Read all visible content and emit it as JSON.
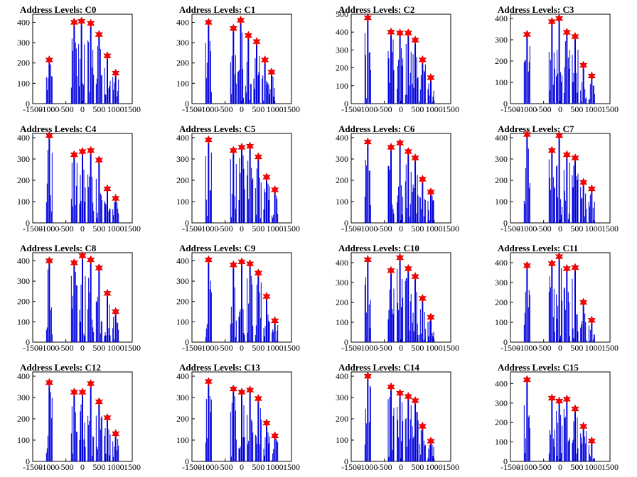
{
  "style": {
    "bar_color": "#0000dd",
    "marker_color": "#ff0000",
    "axis_color": "#000000"
  },
  "chart_data": [
    {
      "type": "bar",
      "title": "Address Levels: C0",
      "xlim": [
        -1500,
        1500
      ],
      "ylim": [
        0,
        440
      ],
      "yticks": [
        0,
        100,
        200,
        300,
        400
      ],
      "xtick_labels": [
        "-1500",
        "-1000",
        "-500",
        "0",
        "500",
        "1000",
        "1500"
      ],
      "marker": "red-star",
      "x": [
        -1000,
        -250,
        -30,
        250,
        500,
        750,
        1000
      ],
      "values": [
        215,
        400,
        405,
        395,
        340,
        235,
        150
      ]
    },
    {
      "type": "bar",
      "title": "Address Levels: C1",
      "xlim": [
        -1500,
        1500
      ],
      "ylim": [
        0,
        440
      ],
      "yticks": [
        0,
        100,
        200,
        300,
        400
      ],
      "xtick_labels": [
        "-1500",
        "-1000",
        "-500",
        "0",
        "500",
        "1000",
        "1500"
      ],
      "marker": "red-star",
      "x": [
        -1000,
        -250,
        -30,
        200,
        450,
        700,
        900
      ],
      "values": [
        400,
        370,
        410,
        335,
        305,
        215,
        155
      ]
    },
    {
      "type": "bar",
      "title": "Address Levels: C2",
      "xlim": [
        -1500,
        1500
      ],
      "ylim": [
        0,
        500
      ],
      "yticks": [
        0,
        100,
        200,
        300,
        400,
        500
      ],
      "xtick_labels": [
        "-1500",
        "-1000",
        "-500",
        "0",
        "500",
        "1000",
        "1500"
      ],
      "marker": "red-star",
      "x": [
        -1000,
        -300,
        -30,
        220,
        430,
        650,
        900
      ],
      "values": [
        480,
        400,
        395,
        395,
        355,
        245,
        145
      ]
    },
    {
      "type": "bar",
      "title": "Address Levels: C3",
      "xlim": [
        -1500,
        1500
      ],
      "ylim": [
        0,
        420
      ],
      "yticks": [
        0,
        100,
        200,
        300,
        400
      ],
      "xtick_labels": [
        "-1500",
        "-1000",
        "-500",
        "0",
        "500",
        "1000",
        "1500"
      ],
      "marker": "red-star",
      "x": [
        -1000,
        -250,
        -30,
        200,
        450,
        700,
        950
      ],
      "values": [
        325,
        385,
        400,
        335,
        315,
        180,
        130
      ]
    },
    {
      "type": "bar",
      "title": "Address Levels: C4",
      "xlim": [
        -1500,
        1500
      ],
      "ylim": [
        0,
        420
      ],
      "yticks": [
        0,
        100,
        200,
        300,
        400
      ],
      "xtick_labels": [
        "-1500",
        "-1000",
        "-500",
        "0",
        "500",
        "1000",
        "1500"
      ],
      "marker": "red-star",
      "x": [
        -1000,
        -250,
        0,
        250,
        500,
        750,
        1000
      ],
      "values": [
        410,
        320,
        335,
        340,
        295,
        160,
        115
      ]
    },
    {
      "type": "bar",
      "title": "Address Levels: C5",
      "xlim": [
        -1500,
        1500
      ],
      "ylim": [
        0,
        420
      ],
      "yticks": [
        0,
        100,
        200,
        300,
        400
      ],
      "xtick_labels": [
        "-1500",
        "-1000",
        "-500",
        "0",
        "500",
        "1000",
        "1500"
      ],
      "marker": "red-star",
      "x": [
        -1000,
        -250,
        0,
        250,
        500,
        750,
        1000
      ],
      "values": [
        390,
        340,
        355,
        360,
        310,
        215,
        155
      ]
    },
    {
      "type": "bar",
      "title": "Address Levels: C6",
      "xlim": [
        -1500,
        1500
      ],
      "ylim": [
        0,
        420
      ],
      "yticks": [
        0,
        100,
        200,
        300,
        400
      ],
      "xtick_labels": [
        "-1500",
        "-1000",
        "-500",
        "0",
        "500",
        "1000",
        "1500"
      ],
      "marker": "red-star",
      "x": [
        -1000,
        -300,
        -30,
        220,
        430,
        650,
        900
      ],
      "values": [
        380,
        355,
        375,
        335,
        305,
        205,
        145
      ]
    },
    {
      "type": "bar",
      "title": "Address Levels: C7",
      "xlim": [
        -1500,
        1500
      ],
      "ylim": [
        0,
        420
      ],
      "yticks": [
        0,
        100,
        200,
        300,
        400
      ],
      "xtick_labels": [
        "-1500",
        "-1000",
        "-500",
        "0",
        "500",
        "1000",
        "1500"
      ],
      "marker": "red-star",
      "x": [
        -1000,
        -250,
        -30,
        200,
        450,
        700,
        950
      ],
      "values": [
        415,
        340,
        410,
        320,
        305,
        190,
        160
      ]
    },
    {
      "type": "bar",
      "title": "Address Levels: C8",
      "xlim": [
        -1500,
        1500
      ],
      "ylim": [
        0,
        440
      ],
      "yticks": [
        0,
        100,
        200,
        300,
        400
      ],
      "xtick_labels": [
        "-1500",
        "-1000",
        "-500",
        "0",
        "500",
        "1000",
        "1500"
      ],
      "marker": "red-star",
      "x": [
        -1000,
        -250,
        0,
        250,
        500,
        750,
        1000
      ],
      "values": [
        400,
        390,
        425,
        405,
        365,
        240,
        150
      ]
    },
    {
      "type": "bar",
      "title": "Address Levels: C9",
      "xlim": [
        -1500,
        1500
      ],
      "ylim": [
        0,
        440
      ],
      "yticks": [
        0,
        100,
        200,
        300,
        400
      ],
      "xtick_labels": [
        "-1500",
        "-1000",
        "-500",
        "0",
        "500",
        "1000",
        "1500"
      ],
      "marker": "red-star",
      "x": [
        -1000,
        -250,
        0,
        250,
        500,
        750,
        1000
      ],
      "values": [
        405,
        380,
        395,
        385,
        340,
        225,
        105
      ]
    },
    {
      "type": "bar",
      "title": "Address Levels: C10",
      "xlim": [
        -1500,
        1500
      ],
      "ylim": [
        0,
        450
      ],
      "yticks": [
        0,
        100,
        200,
        300,
        400
      ],
      "xtick_labels": [
        "-1500",
        "-1000",
        "-500",
        "0",
        "500",
        "1000",
        "1500"
      ],
      "marker": "red-star",
      "x": [
        -1000,
        -300,
        -30,
        220,
        430,
        650,
        900
      ],
      "values": [
        415,
        360,
        425,
        370,
        330,
        220,
        125
      ]
    },
    {
      "type": "bar",
      "title": "Address Levels: C11",
      "xlim": [
        -1500,
        1500
      ],
      "ylim": [
        0,
        450
      ],
      "yticks": [
        0,
        100,
        200,
        300,
        400
      ],
      "xtick_labels": [
        "-1500",
        "-1000",
        "-500",
        "0",
        "500",
        "1000",
        "1500"
      ],
      "marker": "red-star",
      "x": [
        -1000,
        -250,
        -30,
        200,
        450,
        700,
        950
      ],
      "values": [
        385,
        395,
        430,
        370,
        375,
        200,
        110
      ]
    },
    {
      "type": "bar",
      "title": "Address Levels: C12",
      "xlim": [
        -1500,
        1500
      ],
      "ylim": [
        0,
        420
      ],
      "yticks": [
        0,
        100,
        200,
        300,
        400
      ],
      "xtick_labels": [
        "-1500",
        "-1000",
        "-500",
        "0",
        "500",
        "1000",
        "1500"
      ],
      "marker": "red-star",
      "x": [
        -1000,
        -250,
        0,
        250,
        500,
        750,
        1000
      ],
      "values": [
        370,
        325,
        325,
        365,
        280,
        205,
        130
      ]
    },
    {
      "type": "bar",
      "title": "Address Levels: C13",
      "xlim": [
        -1500,
        1500
      ],
      "ylim": [
        0,
        420
      ],
      "yticks": [
        0,
        100,
        200,
        300,
        400
      ],
      "xtick_labels": [
        "-1500",
        "-1000",
        "-500",
        "0",
        "500",
        "1000",
        "1500"
      ],
      "marker": "red-star",
      "x": [
        -1000,
        -250,
        0,
        250,
        500,
        750,
        1000
      ],
      "values": [
        375,
        340,
        325,
        335,
        295,
        180,
        120
      ]
    },
    {
      "type": "bar",
      "title": "Address Levels: C14",
      "xlim": [
        -1500,
        1500
      ],
      "ylim": [
        0,
        420
      ],
      "yticks": [
        0,
        100,
        200,
        300,
        400
      ],
      "xtick_labels": [
        "-1500",
        "-1000",
        "-500",
        "0",
        "500",
        "1000",
        "1500"
      ],
      "marker": "red-star",
      "x": [
        -1000,
        -300,
        -30,
        220,
        430,
        650,
        900
      ],
      "values": [
        400,
        350,
        320,
        305,
        285,
        165,
        95
      ]
    },
    {
      "type": "bar",
      "title": "Address Levels: C15",
      "xlim": [
        -1500,
        1500
      ],
      "ylim": [
        0,
        460
      ],
      "yticks": [
        0,
        100,
        200,
        300,
        400
      ],
      "xtick_labels": [
        "-1500",
        "-1000",
        "-500",
        "0",
        "500",
        "1000",
        "1500"
      ],
      "marker": "red-star",
      "x": [
        -1000,
        -250,
        -30,
        200,
        450,
        700,
        950
      ],
      "values": [
        420,
        325,
        310,
        320,
        270,
        180,
        105
      ]
    }
  ]
}
